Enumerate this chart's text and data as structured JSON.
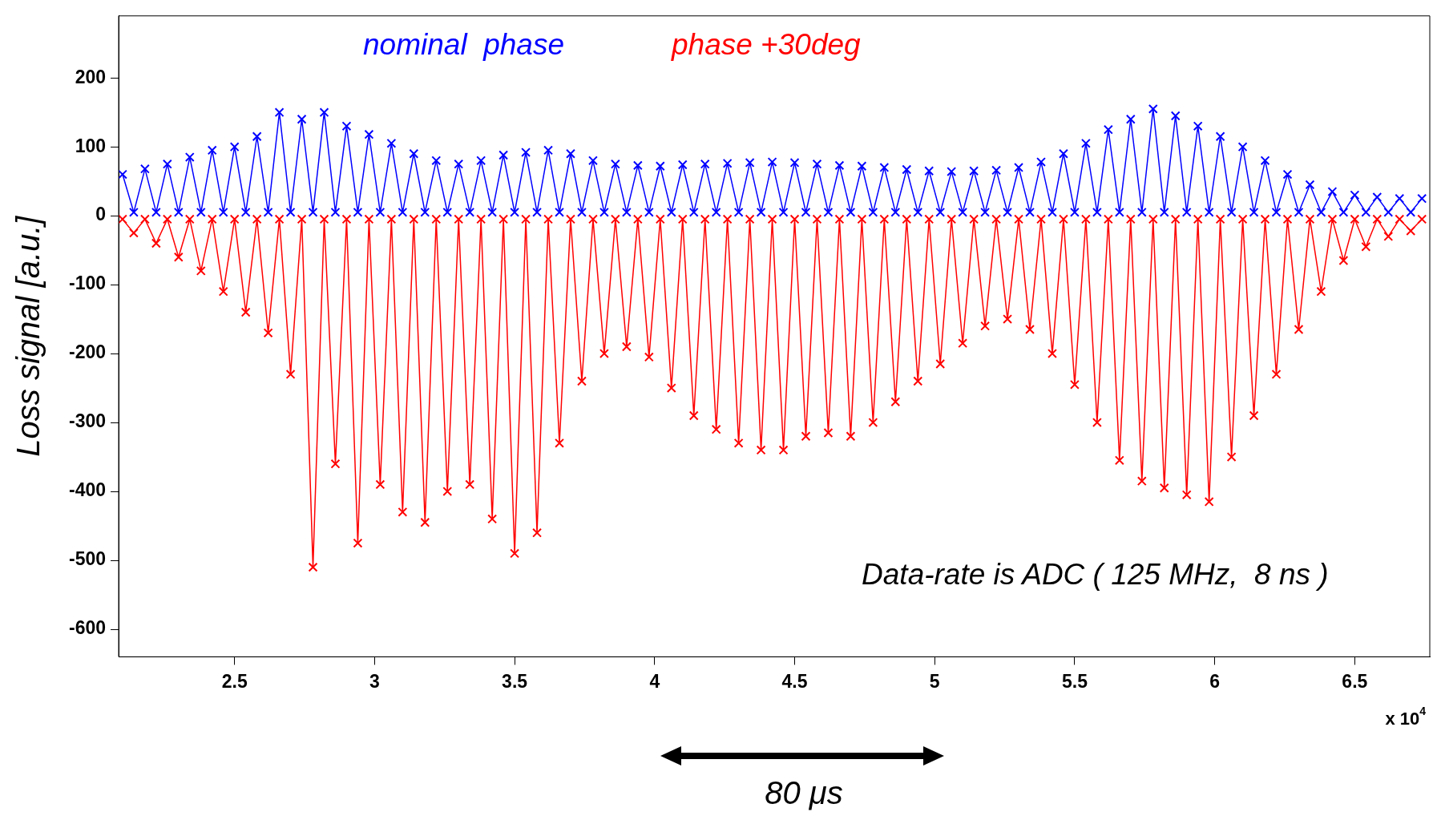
{
  "chart_data": {
    "type": "line",
    "ylabel": "Loss signal [a.u.]",
    "marker": "cross",
    "grid": false,
    "legend": "top",
    "annotations": [
      "Data-rate is ADC ( 125 MHz,  8 ns )",
      "x 10$^{4}$",
      "80 μs"
    ],
    "xlim": [
      2.086,
      6.768
    ],
    "xticks": [
      2.5,
      3,
      3.5,
      4,
      4.5,
      5,
      5.5,
      6,
      6.5
    ],
    "ylim": [
      -640,
      290
    ],
    "yticks": [
      -600,
      -500,
      -400,
      -300,
      -200,
      -100,
      0,
      100,
      200
    ],
    "x": [
      2.1,
      2.14,
      2.18,
      2.22,
      2.26,
      2.3,
      2.34,
      2.38,
      2.42,
      2.46,
      2.5,
      2.54,
      2.58,
      2.62,
      2.66,
      2.7,
      2.74,
      2.78,
      2.82,
      2.86,
      2.9,
      2.94,
      2.98,
      3.02,
      3.06,
      3.1,
      3.14,
      3.18,
      3.22,
      3.26,
      3.3,
      3.34,
      3.38,
      3.42,
      3.46,
      3.5,
      3.54,
      3.58,
      3.62,
      3.66,
      3.7,
      3.74,
      3.78,
      3.82,
      3.86,
      3.9,
      3.94,
      3.98,
      4.02,
      4.06,
      4.1,
      4.14,
      4.18,
      4.22,
      4.26,
      4.3,
      4.34,
      4.38,
      4.42,
      4.46,
      4.5,
      4.54,
      4.58,
      4.62,
      4.66,
      4.7,
      4.74,
      4.78,
      4.82,
      4.86,
      4.9,
      4.94,
      4.98,
      5.02,
      5.06,
      5.1,
      5.14,
      5.18,
      5.22,
      5.26,
      5.3,
      5.34,
      5.38,
      5.42,
      5.46,
      5.5,
      5.54,
      5.58,
      5.62,
      5.66,
      5.7,
      5.74,
      5.78,
      5.82,
      5.86,
      5.9,
      5.94,
      5.98,
      6.02,
      6.06,
      6.1,
      6.14,
      6.18,
      6.22,
      6.26,
      6.3,
      6.34,
      6.38,
      6.42,
      6.46,
      6.5,
      6.54,
      6.58,
      6.62,
      6.66,
      6.7,
      6.74
    ],
    "series": [
      {
        "name": "nominal  phase",
        "color": "#0000ff",
        "values": [
          60,
          5,
          68,
          5,
          75,
          5,
          85,
          5,
          95,
          5,
          100,
          5,
          115,
          5,
          150,
          5,
          140,
          5,
          150,
          5,
          130,
          5,
          118,
          5,
          105,
          5,
          90,
          5,
          80,
          5,
          75,
          5,
          80,
          5,
          88,
          5,
          92,
          5,
          95,
          5,
          90,
          5,
          80,
          5,
          75,
          5,
          73,
          5,
          72,
          5,
          74,
          5,
          75,
          5,
          76,
          5,
          77,
          5,
          78,
          5,
          77,
          5,
          75,
          5,
          73,
          5,
          72,
          5,
          70,
          5,
          67,
          5,
          65,
          5,
          64,
          5,
          65,
          5,
          66,
          5,
          70,
          5,
          78,
          5,
          90,
          5,
          105,
          5,
          125,
          5,
          140,
          5,
          155,
          5,
          145,
          5,
          130,
          5,
          115,
          5,
          100,
          5,
          80,
          5,
          60,
          5,
          45,
          5,
          35,
          5,
          30,
          5,
          27,
          5,
          25,
          5,
          25
        ]
      },
      {
        "name": "phase +30deg",
        "color": "#ff0000",
        "values": [
          -5,
          -25,
          -5,
          -40,
          -5,
          -60,
          -5,
          -80,
          -5,
          -110,
          -5,
          -140,
          -5,
          -170,
          -5,
          -230,
          -5,
          -510,
          -5,
          -360,
          -5,
          -475,
          -5,
          -390,
          -5,
          -430,
          -5,
          -445,
          -5,
          -400,
          -5,
          -390,
          -5,
          -440,
          -5,
          -490,
          -5,
          -460,
          -5,
          -330,
          -5,
          -240,
          -5,
          -200,
          -5,
          -190,
          -5,
          -205,
          -5,
          -250,
          -5,
          -290,
          -5,
          -310,
          -5,
          -330,
          -5,
          -340,
          -5,
          -340,
          -5,
          -320,
          -5,
          -315,
          -5,
          -320,
          -5,
          -300,
          -5,
          -270,
          -5,
          -240,
          -5,
          -215,
          -5,
          -185,
          -5,
          -160,
          -5,
          -150,
          -5,
          -165,
          -5,
          -200,
          -5,
          -245,
          -5,
          -300,
          -5,
          -355,
          -5,
          -385,
          -5,
          -395,
          -5,
          -405,
          -5,
          -415,
          -5,
          -350,
          -5,
          -290,
          -5,
          -230,
          -5,
          -165,
          -5,
          -110,
          -5,
          -65,
          -5,
          -45,
          -5,
          -30,
          -5,
          -22,
          -5
        ]
      }
    ]
  }
}
